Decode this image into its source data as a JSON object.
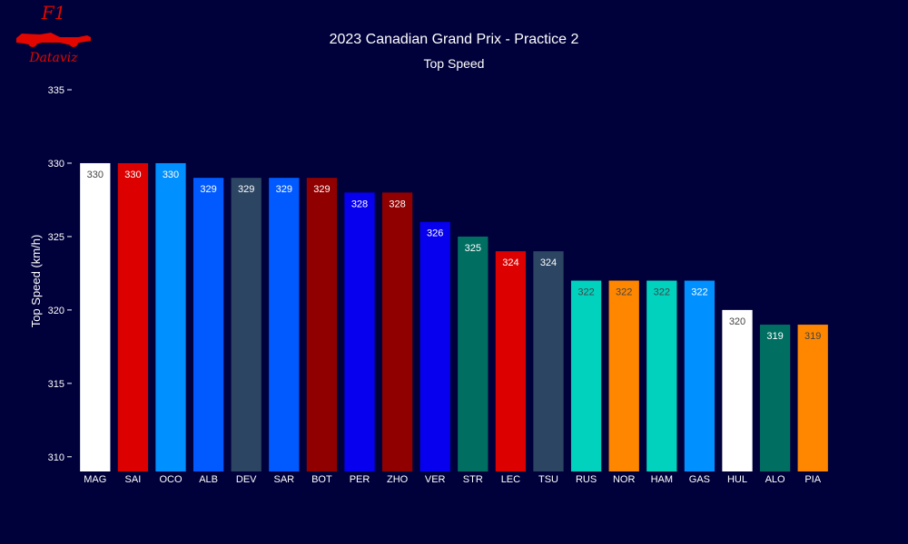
{
  "logo": {
    "top_text": "F1",
    "bottom_text": "Dataviz"
  },
  "chart_data": {
    "type": "bar",
    "title": "2023 Canadian Grand Prix - Practice 2",
    "subtitle": "Top Speed",
    "xlabel": "",
    "ylabel": "Top Speed (km/h)",
    "ylim": [
      309,
      335
    ],
    "yticks": [
      310,
      315,
      320,
      325,
      330,
      335
    ],
    "grid": false,
    "categories": [
      "MAG",
      "SAI",
      "OCO",
      "ALB",
      "DEV",
      "SAR",
      "BOT",
      "PER",
      "ZHO",
      "VER",
      "STR",
      "LEC",
      "TSU",
      "RUS",
      "NOR",
      "HAM",
      "GAS",
      "HUL",
      "ALO",
      "PIA"
    ],
    "values": [
      330,
      330,
      330,
      329,
      329,
      329,
      329,
      328,
      328,
      326,
      325,
      324,
      324,
      322,
      322,
      322,
      322,
      320,
      319,
      319
    ],
    "colors": [
      "#ffffff",
      "#dc0000",
      "#0090ff",
      "#005aff",
      "#2b4562",
      "#005aff",
      "#900000",
      "#0600ef",
      "#900000",
      "#0600ef",
      "#006f62",
      "#dc0000",
      "#2b4562",
      "#00d2be",
      "#ff8700",
      "#00d2be",
      "#0090ff",
      "#ffffff",
      "#006f62",
      "#ff8700"
    ],
    "label_colors": [
      "#444444",
      "#ffffff",
      "#ffffff",
      "#ffffff",
      "#ffffff",
      "#ffffff",
      "#ffffff",
      "#ffffff",
      "#ffffff",
      "#ffffff",
      "#ffffff",
      "#ffffff",
      "#ffffff",
      "#444444",
      "#444444",
      "#444444",
      "#ffffff",
      "#444444",
      "#ffffff",
      "#444444"
    ]
  }
}
